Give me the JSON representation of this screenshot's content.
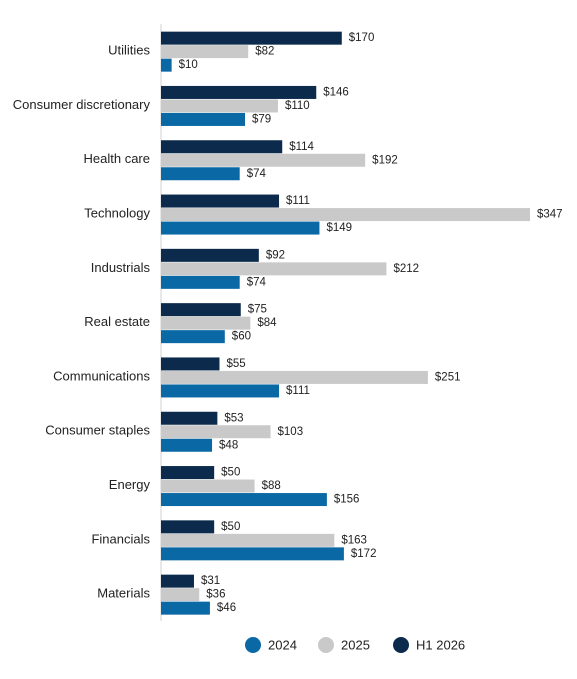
{
  "chart_data": {
    "type": "bar",
    "categories": [
      "Utilities",
      "Consumer discretionary",
      "Health care",
      "Technology",
      "Industrials",
      "Real estate",
      "Communications",
      "Consumer staples",
      "Energy",
      "Financials",
      "Materials"
    ],
    "series": [
      {
        "name": "2024",
        "color": "#0a69a5",
        "values": [
          10,
          79,
          74,
          149,
          74,
          60,
          111,
          48,
          156,
          172,
          46
        ],
        "value_labels": [
          "$10",
          "$79",
          "$74",
          "$149",
          "$74",
          "$60",
          "$111",
          "$48",
          "$156",
          "$172",
          "$46"
        ]
      },
      {
        "name": "2025",
        "color": "#c9c9c9",
        "values": [
          82,
          110,
          192,
          347,
          212,
          84,
          251,
          103,
          88,
          163,
          36
        ],
        "value_labels": [
          "$82",
          "$110",
          "$192",
          "$347",
          "$212",
          "$84",
          "$251",
          "$103",
          "$88",
          "$163",
          "$36"
        ]
      },
      {
        "name": "H1 2026",
        "color": "#0c2a4b",
        "values": [
          170,
          146,
          114,
          111,
          92,
          75,
          55,
          53,
          50,
          50,
          31
        ],
        "value_labels": [
          "$170",
          "$146",
          "$114",
          "$111",
          "$92",
          "$75",
          "$55",
          "$53",
          "$50",
          "$50",
          "$31"
        ]
      }
    ]
  }
}
